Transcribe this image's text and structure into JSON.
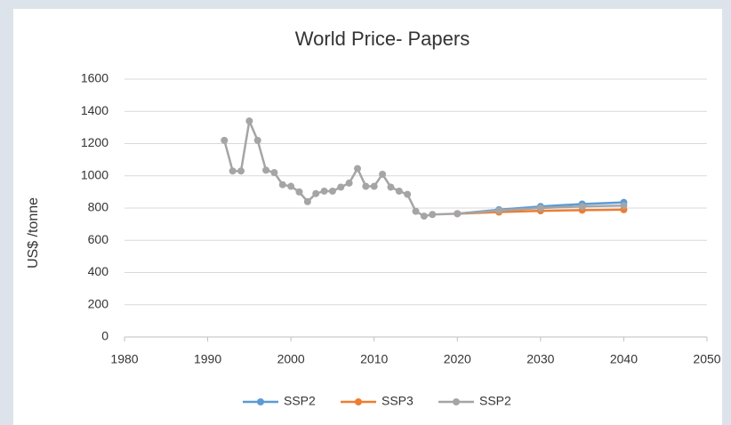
{
  "chart_data": {
    "type": "line",
    "title": "World Price- Papers",
    "y_label": "US$ /tonne",
    "xlim": [
      1980,
      2050
    ],
    "xticks": [
      1980,
      1990,
      2000,
      2010,
      2020,
      2030,
      2040,
      2050
    ],
    "ylim": [
      0,
      1600
    ],
    "yticks": [
      0,
      200,
      400,
      600,
      800,
      1000,
      1200,
      1400,
      1600
    ],
    "grid": true,
    "legend": "bottom",
    "series": [
      {
        "name": "SSP2",
        "color": "#5b9bd5",
        "x": [
          2020,
          2025,
          2030,
          2035,
          2040
        ],
        "values": [
          765,
          790,
          810,
          825,
          835
        ]
      },
      {
        "name": "SSP3",
        "color": "#ed7d31",
        "x": [
          2020,
          2025,
          2030,
          2035,
          2040
        ],
        "values": [
          765,
          775,
          783,
          787,
          790
        ]
      },
      {
        "name": "SSP2",
        "color": "#a5a5a5",
        "x": [
          1992,
          1993,
          1994,
          1995,
          1996,
          1997,
          1998,
          1999,
          2000,
          2001,
          2002,
          2003,
          2004,
          2005,
          2006,
          2007,
          2008,
          2009,
          2010,
          2011,
          2012,
          2013,
          2014,
          2015,
          2016,
          2017,
          2020,
          2025,
          2030,
          2035,
          2040
        ],
        "values": [
          1220,
          1030,
          1030,
          1340,
          1220,
          1035,
          1020,
          945,
          935,
          900,
          840,
          890,
          905,
          905,
          930,
          955,
          1045,
          935,
          935,
          1010,
          930,
          905,
          885,
          780,
          750,
          760,
          765,
          785,
          800,
          810,
          815
        ]
      }
    ]
  }
}
